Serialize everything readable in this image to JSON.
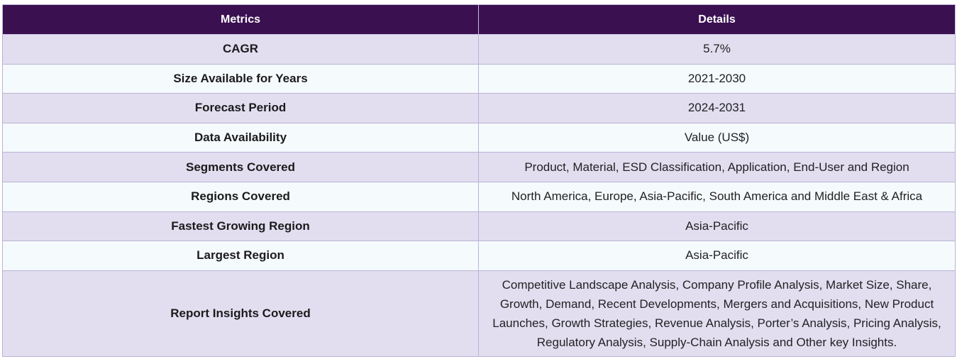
{
  "table": {
    "headers": {
      "metrics": "Metrics",
      "details": "Details"
    },
    "rows": [
      {
        "metric": "CAGR",
        "detail": "5.7%"
      },
      {
        "metric": "Size Available for Years",
        "detail": "2021-2030"
      },
      {
        "metric": "Forecast Period",
        "detail": "2024-2031"
      },
      {
        "metric": "Data Availability",
        "detail": "Value (US$)"
      },
      {
        "metric": "Segments Covered",
        "detail": "Product, Material, ESD Classification, Application, End-User and Region"
      },
      {
        "metric": "Regions Covered",
        "detail": "North America, Europe, Asia-Pacific, South America and Middle East & Africa"
      },
      {
        "metric": "Fastest Growing Region",
        "detail": "Asia-Pacific"
      },
      {
        "metric": "Largest Region",
        "detail": "Asia-Pacific"
      },
      {
        "metric": "Report Insights Covered",
        "detail": "Competitive Landscape Analysis, Company Profile Analysis, Market Size, Share, Growth, Demand, Recent Developments, Mergers and Acquisitions, New Product Launches, Growth Strategies, Revenue Analysis, Porter’s Analysis, Pricing Analysis, Regulatory Analysis, Supply-Chain Analysis and Other key Insights."
      }
    ]
  }
}
